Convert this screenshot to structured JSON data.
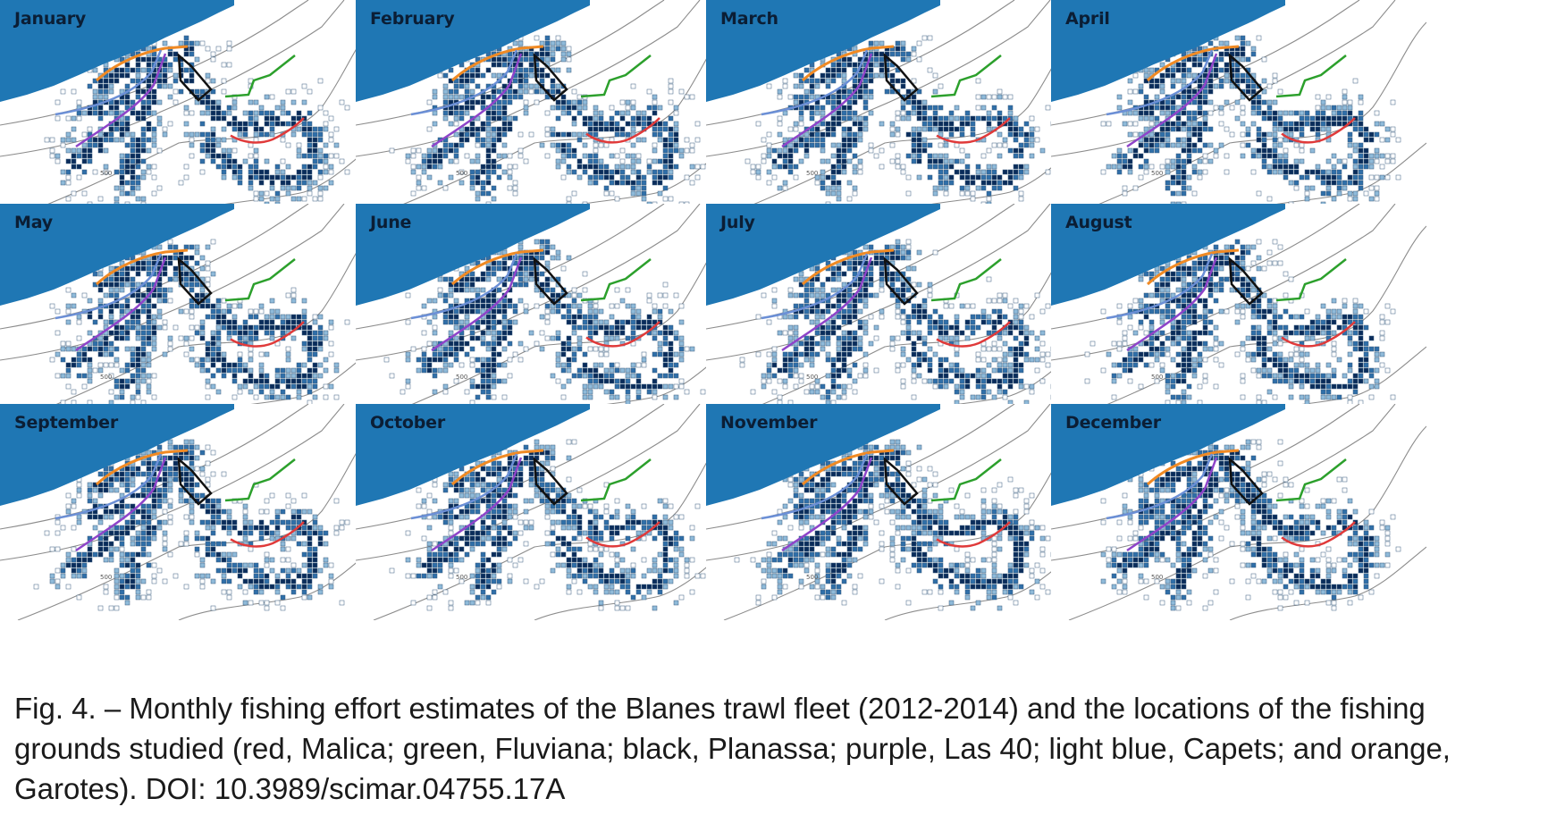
{
  "figure": {
    "panels": [
      {
        "label": "January"
      },
      {
        "label": "February"
      },
      {
        "label": "March"
      },
      {
        "label": "April"
      },
      {
        "label": "May"
      },
      {
        "label": "June"
      },
      {
        "label": "July"
      },
      {
        "label": "August"
      },
      {
        "label": "September"
      },
      {
        "label": "October"
      },
      {
        "label": "November"
      },
      {
        "label": "December"
      }
    ],
    "contour_label": "500",
    "colors": {
      "land": "#1f77b4",
      "effort_dark": "#0a2c5a",
      "effort_mid": "#2f6fa8",
      "effort_light": "#8fbad9",
      "effort_empty": "#ffffff",
      "bathymetry": "#8c8c8c",
      "malica": "#e03a3a",
      "fluviana": "#2ca02c",
      "planassa": "#111111",
      "las40": "#8e44c9",
      "capets": "#6b8fd6",
      "garotes": "#f08a24"
    }
  },
  "caption": "Fig. 4. – Monthly fishing effort estimates of the Blanes trawl fleet (2012-2014) and the locations of the fishing grounds studied (red, Malica; green, Fluviana; black, Planassa; purple, Las 40; light blue, Capets; and orange, Garotes). DOI: 10.3989/scimar.04755.17A"
}
